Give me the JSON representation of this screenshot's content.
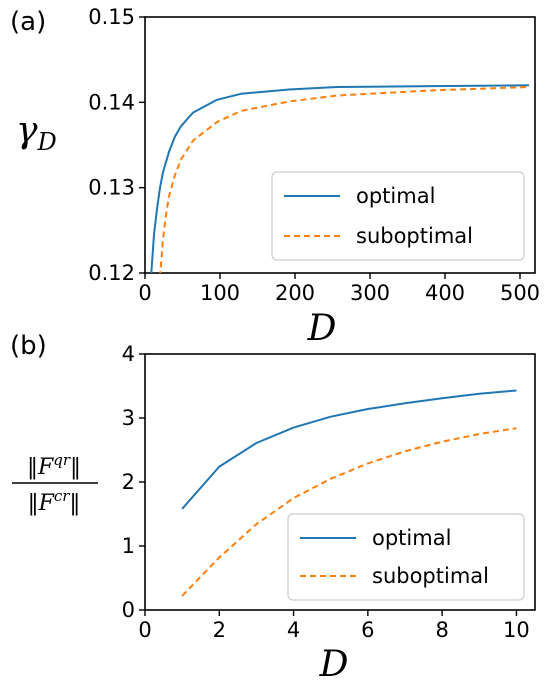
{
  "chart_data": [
    {
      "panel_label": "(a)",
      "type": "line",
      "xlabel": "D",
      "ylabel_main": "γ",
      "ylabel_sub": "D",
      "xlim": [
        0,
        520
      ],
      "ylim": [
        0.12,
        0.15
      ],
      "xticks": [
        0,
        100,
        200,
        300,
        400,
        500
      ],
      "yticks": [
        0.12,
        0.13,
        0.14,
        0.15
      ],
      "xtick_labels": [
        "0",
        "100",
        "200",
        "300",
        "400",
        "500"
      ],
      "ytick_labels": [
        "0.12",
        "0.13",
        "0.14",
        "0.15"
      ],
      "legend_position": "lower-right",
      "series": [
        {
          "name": "optimal",
          "color": "#1f77b4",
          "dash": "solid",
          "x": [
            8,
            12,
            16,
            20,
            24,
            32,
            40,
            48,
            64,
            96,
            128,
            192,
            256,
            384,
            512
          ],
          "y": [
            0.1195,
            0.1245,
            0.1275,
            0.13,
            0.1318,
            0.1342,
            0.136,
            0.1372,
            0.1388,
            0.1403,
            0.141,
            0.1415,
            0.1418,
            0.1419,
            0.142
          ]
        },
        {
          "name": "suboptimal",
          "color": "#ff7f0e",
          "dash": "dashed",
          "x": [
            20,
            24,
            28,
            32,
            40,
            48,
            64,
            96,
            128,
            192,
            256,
            384,
            512
          ],
          "y": [
            0.1195,
            0.124,
            0.1268,
            0.129,
            0.1315,
            0.1333,
            0.1355,
            0.1377,
            0.139,
            0.1401,
            0.1408,
            0.1414,
            0.1418
          ]
        }
      ]
    },
    {
      "panel_label": "(b)",
      "type": "line",
      "xlabel": "D",
      "ylabel_num": "‖F",
      "ylabel_num_sup": "qr",
      "ylabel_den": "‖F",
      "ylabel_den_sup": "cr",
      "ylabel_close": "‖",
      "xlim": [
        0,
        10.5
      ],
      "ylim": [
        0,
        4
      ],
      "xticks": [
        0,
        2,
        4,
        6,
        8,
        10
      ],
      "yticks": [
        0,
        1,
        2,
        3,
        4
      ],
      "xtick_labels": [
        "0",
        "2",
        "4",
        "6",
        "8",
        "10"
      ],
      "ytick_labels": [
        "0",
        "1",
        "2",
        "3",
        "4"
      ],
      "legend_position": "lower-right",
      "series": [
        {
          "name": "optimal",
          "color": "#1f77b4",
          "dash": "solid",
          "x": [
            1,
            2,
            3,
            4,
            5,
            6,
            7,
            8,
            9,
            10
          ],
          "y": [
            1.58,
            2.24,
            2.61,
            2.85,
            3.02,
            3.14,
            3.23,
            3.31,
            3.38,
            3.43
          ]
        },
        {
          "name": "suboptimal",
          "color": "#ff7f0e",
          "dash": "dashed",
          "x": [
            1,
            2,
            3,
            4,
            5,
            6,
            7,
            8,
            9,
            10
          ],
          "y": [
            0.22,
            0.82,
            1.34,
            1.75,
            2.05,
            2.29,
            2.48,
            2.63,
            2.75,
            2.84
          ]
        }
      ]
    }
  ]
}
